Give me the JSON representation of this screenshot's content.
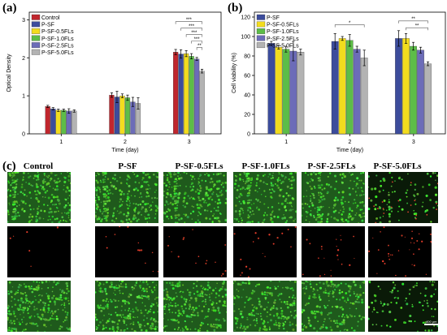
{
  "panels": {
    "a": "(a)",
    "b": "(b)",
    "c": "(c)"
  },
  "colors": {
    "Control": "#c0262d",
    "P-SF": "#3c4c9c",
    "P-SF-0.5FLs": "#f2dc1e",
    "P-SF-1.0FLs": "#5dbd48",
    "P-SF-2.5FLs": "#6c6cb8",
    "P-SF-5.0FLs": "#b3b3b3"
  },
  "chart_data": [
    {
      "type": "bar",
      "panel": "(a)",
      "ylabel": "Optical Density",
      "xlabel": "Time (day)",
      "categories": [
        "1",
        "2",
        "3"
      ],
      "ylim": [
        0,
        3.2
      ],
      "yticks": [
        "0",
        "1",
        "2",
        "3"
      ],
      "legend_position": "top-left",
      "series": [
        {
          "name": "Control",
          "values": [
            0.72,
            1.02,
            2.15
          ],
          "errors": [
            0.03,
            0.06,
            0.07
          ]
        },
        {
          "name": "P-SF",
          "values": [
            0.66,
            0.97,
            2.1
          ],
          "errors": [
            0.03,
            0.15,
            0.11
          ]
        },
        {
          "name": "P-SF-0.5FLs",
          "values": [
            0.62,
            1.0,
            2.11
          ],
          "errors": [
            0.03,
            0.05,
            0.08
          ]
        },
        {
          "name": "P-SF-1.0FLs",
          "values": [
            0.62,
            0.95,
            2.04
          ],
          "errors": [
            0.03,
            0.07,
            0.07
          ]
        },
        {
          "name": "P-SF-2.5FLs",
          "values": [
            0.6,
            0.84,
            1.97
          ],
          "errors": [
            0.06,
            0.12,
            0.04
          ]
        },
        {
          "name": "P-SF-5.0FLs",
          "values": [
            0.6,
            0.8,
            1.65
          ],
          "errors": [
            0.03,
            0.15,
            0.05
          ]
        }
      ],
      "significance": [
        "***",
        "***",
        "***",
        "***",
        "**"
      ]
    },
    {
      "type": "bar",
      "panel": "(b)",
      "ylabel": "Cell viability (%)",
      "xlabel": "Time (day)",
      "categories": [
        "1",
        "2",
        "3"
      ],
      "ylim": [
        0,
        125
      ],
      "yticks": [
        "0",
        "20",
        "40",
        "60",
        "80",
        "100",
        "120"
      ],
      "legend_position": "top-left",
      "series": [
        {
          "name": "P-SF",
          "values": [
            93,
            95,
            98
          ],
          "errors": [
            2,
            8,
            8
          ]
        },
        {
          "name": "P-SF-0.5FLs",
          "values": [
            89,
            98,
            98
          ],
          "errors": [
            2,
            2,
            5
          ]
        },
        {
          "name": "P-SF-1.0FLs",
          "values": [
            87,
            96,
            90
          ],
          "errors": [
            3,
            6,
            4
          ]
        },
        {
          "name": "P-SF-2.5FLs",
          "values": [
            85,
            87,
            86
          ],
          "errors": [
            10,
            3,
            3
          ]
        },
        {
          "name": "P-SF-5.0FLs",
          "values": [
            84,
            78,
            72
          ],
          "errors": [
            3,
            8,
            2
          ]
        }
      ],
      "significance": [
        "*",
        "**",
        "**"
      ]
    }
  ],
  "micrographs": {
    "columns": [
      "Control",
      "P-SF",
      "P-SF-0.5FLs",
      "P-SF-1.0FLs",
      "P-SF-2.5FLs",
      "P-SF-5.0FLs"
    ],
    "rows": [
      "merged",
      "dead",
      "live"
    ],
    "scale_bar": "400 μm"
  }
}
